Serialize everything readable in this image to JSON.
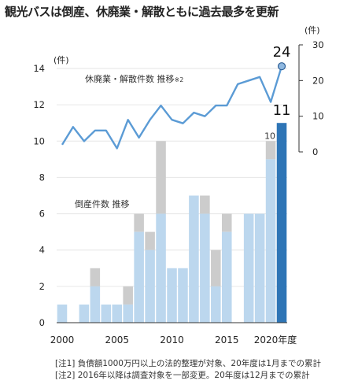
{
  "title": "観光バスは倒産、休廃業・解散ともに過去最多を更新",
  "notes": [
    "[注1] 負債額1000万円以上の法的整理が対象、20年度は1月までの累計",
    "[注2] 2016年以降は調査対象を一部変更。20年度は12月までの累計"
  ],
  "colors": {
    "bar_light": "#bcd7ee",
    "bar_gray": "#cccccc",
    "bar_dark": "#2e75b6",
    "line": "#5b9bd5",
    "grid": "#e6e6e6"
  },
  "chart_data": {
    "type": "bar+line",
    "x": [
      2000,
      2001,
      2002,
      2003,
      2004,
      2005,
      2006,
      2007,
      2008,
      2009,
      2010,
      2011,
      2012,
      2013,
      2014,
      2015,
      2016,
      2017,
      2018,
      2019,
      2020
    ],
    "xlabel": "年度",
    "x_ticks": [
      2000,
      2005,
      2010,
      2015
    ],
    "x_last_label": "2020年度",
    "left_axis": {
      "unit": "(件)",
      "ylim": [
        0,
        14
      ],
      "ticks": [
        0,
        2,
        4,
        6,
        8,
        10,
        12,
        14
      ]
    },
    "right_axis": {
      "unit": "(件)",
      "ylim": [
        0,
        30
      ],
      "ticks": [
        0,
        10,
        20,
        30
      ]
    },
    "series": [
      {
        "name": "倒産件数 推移",
        "type": "bar",
        "axis": "left",
        "values": [
          1,
          null,
          1,
          2,
          1,
          1,
          1,
          5,
          4,
          6,
          3,
          3,
          7,
          6,
          2,
          5,
          null,
          6,
          6,
          9,
          11
        ],
        "gray_totals": [
          1,
          null,
          1,
          3,
          1,
          1,
          2,
          6,
          5,
          10,
          3,
          3,
          7,
          7,
          4,
          6,
          null,
          6,
          6,
          10,
          11
        ],
        "highlight_last": true,
        "data_labels": {
          "2019": "10",
          "2020": "11"
        }
      },
      {
        "name": "休廃業・解散件数 推移",
        "annotation": "※2",
        "type": "line",
        "axis": "right",
        "values": [
          2,
          7,
          3,
          6,
          6,
          1,
          9,
          4,
          9,
          13,
          9,
          8,
          11,
          10,
          13,
          13,
          19,
          20,
          21,
          14,
          24
        ],
        "data_labels": {
          "2020": "24"
        }
      }
    ]
  }
}
